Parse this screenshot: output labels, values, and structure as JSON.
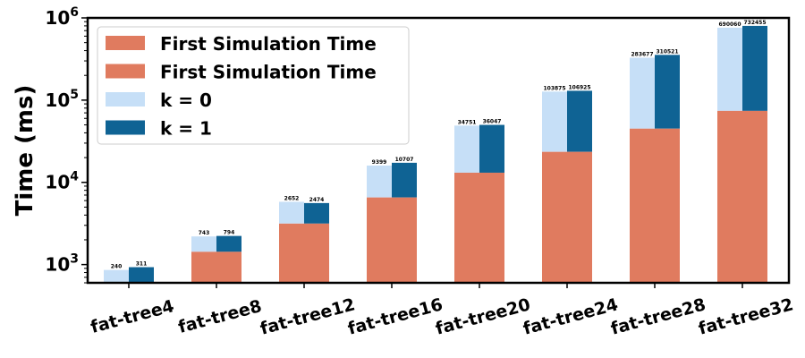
{
  "chart_data": {
    "type": "bar",
    "y_scale": "log",
    "ylabel": "Time (ms)",
    "ylim": [
      600,
      1000000
    ],
    "y_ticks": [
      {
        "value": 1000,
        "base": "10",
        "exp": "3"
      },
      {
        "value": 10000,
        "base": "10",
        "exp": "4"
      },
      {
        "value": 100000,
        "base": "10",
        "exp": "5"
      },
      {
        "value": 1000000,
        "base": "10",
        "exp": "6"
      }
    ],
    "categories": [
      "fat-tree4",
      "fat-tree8",
      "fat-tree12",
      "fat-tree16",
      "fat-tree20",
      "fat-tree24",
      "fat-tree28",
      "fat-tree32"
    ],
    "first_simulation_time": [
      null,
      1430,
      3150,
      6550,
      13100,
      23500,
      45000,
      74000
    ],
    "series": [
      {
        "name": "k = 0",
        "values": [
          860,
          2200,
          5800,
          16000,
          49000,
          127000,
          328000,
          760000
        ],
        "labels": [
          "240",
          "743",
          "2652",
          "9399",
          "34751",
          "103875",
          "283677",
          "690060"
        ]
      },
      {
        "name": "k = 1",
        "values": [
          930,
          2230,
          5600,
          17300,
          50000,
          130000,
          355000,
          800000
        ],
        "labels": [
          "311",
          "794",
          "2474",
          "10707",
          "36047",
          "106925",
          "310521",
          "732455"
        ]
      }
    ],
    "legend": {
      "position": "top-left",
      "entries": [
        "First Simulation Time",
        "First Simulation Time",
        "k = 0",
        "k = 1"
      ]
    },
    "colors": {
      "first_simulation": "#e07b5f",
      "k0": "#c6dff7",
      "k1": "#0f6394"
    },
    "grid": false
  }
}
